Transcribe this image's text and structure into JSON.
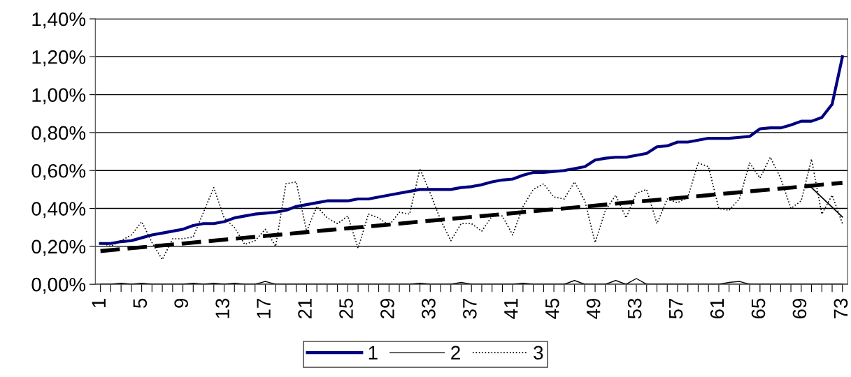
{
  "chart_data": {
    "type": "line",
    "x": [
      1,
      2,
      3,
      4,
      5,
      6,
      7,
      8,
      9,
      10,
      11,
      12,
      13,
      14,
      15,
      16,
      17,
      18,
      19,
      20,
      21,
      22,
      23,
      24,
      25,
      26,
      27,
      28,
      29,
      30,
      31,
      32,
      33,
      34,
      35,
      36,
      37,
      38,
      39,
      40,
      41,
      42,
      43,
      44,
      45,
      46,
      47,
      48,
      49,
      50,
      51,
      52,
      53,
      54,
      55,
      56,
      57,
      58,
      59,
      60,
      61,
      62,
      63,
      64,
      65,
      66,
      67,
      68,
      69,
      70,
      71,
      72,
      73
    ],
    "series": [
      {
        "name": "1",
        "color": "#000080",
        "line_style": "solid",
        "values": [
          0.215,
          0.215,
          0.225,
          0.23,
          0.245,
          0.26,
          0.27,
          0.28,
          0.29,
          0.31,
          0.32,
          0.32,
          0.33,
          0.35,
          0.36,
          0.37,
          0.375,
          0.38,
          0.39,
          0.41,
          0.42,
          0.43,
          0.44,
          0.44,
          0.44,
          0.45,
          0.45,
          0.46,
          0.47,
          0.48,
          0.49,
          0.5,
          0.5,
          0.5,
          0.5,
          0.51,
          0.515,
          0.525,
          0.54,
          0.55,
          0.555,
          0.575,
          0.59,
          0.59,
          0.595,
          0.6,
          0.61,
          0.62,
          0.655,
          0.665,
          0.67,
          0.67,
          0.68,
          0.69,
          0.725,
          0.73,
          0.75,
          0.75,
          0.76,
          0.77,
          0.77,
          0.77,
          0.775,
          0.78,
          0.82,
          0.825,
          0.825,
          0.84,
          0.86,
          0.86,
          0.88,
          0.95,
          1.2
        ]
      },
      {
        "name": "2",
        "color": "#000000",
        "line_style": "solid",
        "values": [
          0,
          0,
          0.005,
          0,
          0.005,
          0,
          0,
          0,
          0,
          0.005,
          0,
          0.005,
          0,
          0.005,
          0,
          0,
          0.015,
          0,
          0,
          0,
          0,
          0,
          0,
          0,
          0,
          0,
          0,
          0,
          0,
          0,
          0,
          0.005,
          0,
          0,
          0,
          0.01,
          0,
          0,
          0,
          0,
          0,
          0.005,
          0,
          0,
          0,
          0,
          0.02,
          0,
          0,
          0,
          0.02,
          0,
          0.03,
          0,
          0,
          0,
          0,
          0,
          0,
          0,
          0,
          0.01,
          0.015,
          0,
          0,
          0,
          0,
          0,
          0,
          0,
          0,
          0,
          0
        ]
      },
      {
        "name": "3",
        "color": "#000000",
        "line_style": "dotted",
        "values": [
          0.22,
          0.2,
          0.23,
          0.26,
          0.33,
          0.22,
          0.13,
          0.24,
          0.24,
          0.25,
          0.38,
          0.51,
          0.35,
          0.3,
          0.21,
          0.23,
          0.29,
          0.2,
          0.53,
          0.54,
          0.28,
          0.41,
          0.35,
          0.32,
          0.36,
          0.19,
          0.37,
          0.35,
          0.31,
          0.38,
          0.37,
          0.61,
          0.48,
          0.34,
          0.23,
          0.32,
          0.32,
          0.28,
          0.36,
          0.36,
          0.26,
          0.41,
          0.5,
          0.53,
          0.46,
          0.45,
          0.54,
          0.44,
          0.22,
          0.39,
          0.47,
          0.35,
          0.48,
          0.5,
          0.32,
          0.45,
          0.43,
          0.46,
          0.64,
          0.62,
          0.4,
          0.39,
          0.45,
          0.64,
          0.56,
          0.67,
          0.56,
          0.4,
          0.44,
          0.66,
          0.37,
          0.47,
          0.32
        ]
      },
      {
        "color": "#000000",
        "line_style": "dashed",
        "x": [
          1,
          73
        ],
        "values": [
          0.175,
          0.535
        ]
      },
      {
        "color": "#000000",
        "line_style": "solid",
        "x": [
          70,
          73
        ],
        "values": [
          0.51,
          0.355
        ]
      }
    ],
    "xlim": [
      0.5,
      73.5
    ],
    "xticks": [
      1,
      {
        "value": 2,
        "label": null
      },
      {
        "value": 3,
        "label": null
      },
      {
        "value": 4,
        "label": null
      },
      5,
      {
        "value": 6,
        "label": null
      },
      {
        "value": 7,
        "label": null
      },
      {
        "value": 8,
        "label": null
      },
      9,
      {
        "value": 10,
        "label": null
      },
      {
        "value": 11,
        "label": null
      },
      {
        "value": 12,
        "label": null
      },
      13,
      {
        "value": 14,
        "label": null
      },
      {
        "value": 15,
        "label": null
      },
      {
        "value": 16,
        "label": null
      },
      17,
      {
        "value": 18,
        "label": null
      },
      {
        "value": 19,
        "label": null
      },
      {
        "value": 20,
        "label": null
      },
      21,
      {
        "value": 22,
        "label": null
      },
      {
        "value": 23,
        "label": null
      },
      {
        "value": 24,
        "label": null
      },
      25,
      {
        "value": 26,
        "label": null
      },
      {
        "value": 27,
        "label": null
      },
      {
        "value": 28,
        "label": null
      },
      29,
      {
        "value": 30,
        "label": null
      },
      {
        "value": 31,
        "label": null
      },
      {
        "value": 32,
        "label": null
      },
      33,
      {
        "value": 34,
        "label": null
      },
      {
        "value": 35,
        "label": null
      },
      {
        "value": 36,
        "label": null
      },
      37,
      {
        "value": 38,
        "label": null
      },
      {
        "value": 39,
        "label": null
      },
      {
        "value": 40,
        "label": null
      },
      41,
      {
        "value": 42,
        "label": null
      },
      {
        "value": 43,
        "label": null
      },
      {
        "value": 44,
        "label": null
      },
      45,
      {
        "value": 46,
        "label": null
      },
      {
        "value": 47,
        "label": null
      },
      {
        "value": 48,
        "label": null
      },
      49,
      {
        "value": 50,
        "label": null
      },
      {
        "value": 51,
        "label": null
      },
      {
        "value": 52,
        "label": null
      },
      53,
      {
        "value": 54,
        "label": null
      },
      {
        "value": 55,
        "label": null
      },
      {
        "value": 56,
        "label": null
      },
      57,
      {
        "value": 58,
        "label": null
      },
      {
        "value": 59,
        "label": null
      },
      {
        "value": 60,
        "label": null
      },
      61,
      {
        "value": 62,
        "label": null
      },
      {
        "value": 63,
        "label": null
      },
      {
        "value": 64,
        "label": null
      },
      65,
      {
        "value": 66,
        "label": null
      },
      {
        "value": 67,
        "label": null
      },
      {
        "value": 68,
        "label": null
      },
      69,
      {
        "value": 70,
        "label": null
      },
      {
        "value": 71,
        "label": null
      },
      {
        "value": 72,
        "label": null
      },
      73
    ],
    "ylim": [
      0,
      1.4
    ],
    "yticks": [
      {
        "value": 0,
        "label": "0,00%"
      },
      {
        "value": 0.2,
        "label": "0,20%"
      },
      {
        "value": 0.4,
        "label": "0,40%"
      },
      {
        "value": 0.6,
        "label": "0,60%"
      },
      {
        "value": 0.8,
        "label": "0,80%"
      },
      {
        "value": 1.0,
        "label": "1,00%"
      },
      {
        "value": 1.2,
        "label": "1,20%"
      },
      {
        "value": 1.4,
        "label": "1,40%"
      }
    ],
    "grid": "y",
    "legend": "bottom",
    "marker": "none"
  }
}
